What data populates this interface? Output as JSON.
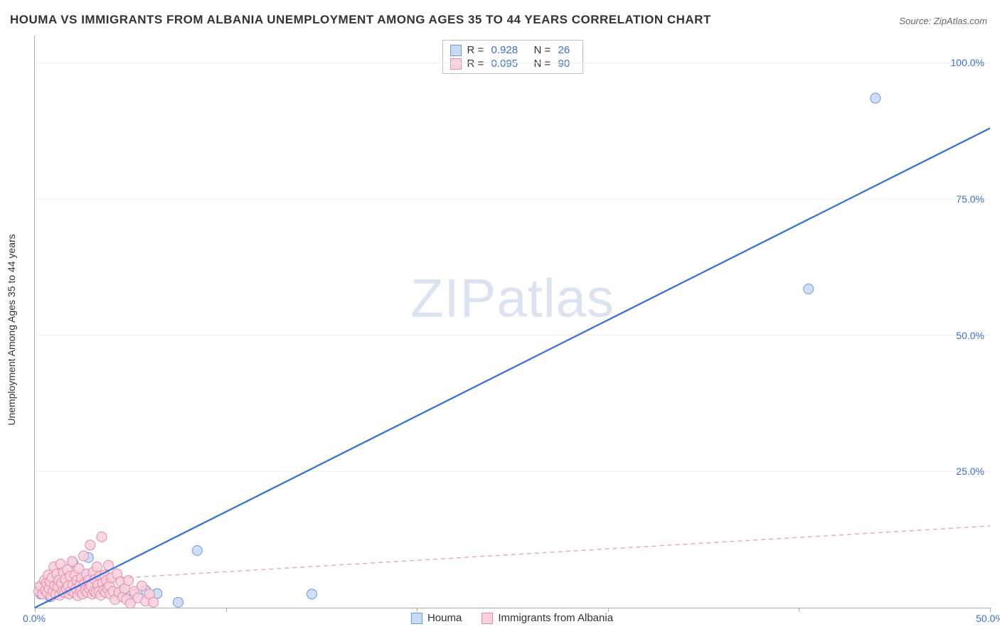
{
  "title": "HOUMA VS IMMIGRANTS FROM ALBANIA UNEMPLOYMENT AMONG AGES 35 TO 44 YEARS CORRELATION CHART",
  "source_label": "Source:",
  "source_value": "ZipAtlas.com",
  "ylabel": "Unemployment Among Ages 35 to 44 years",
  "watermark_a": "ZIP",
  "watermark_b": "atlas",
  "chart": {
    "type": "scatter",
    "xlim": [
      0,
      50
    ],
    "ylim": [
      0,
      105
    ],
    "x_ticks": [
      0,
      10,
      20,
      30,
      40,
      50
    ],
    "x_tick_labels": [
      "0.0%",
      "",
      "",
      "",
      "",
      "50.0%"
    ],
    "y_gridlines": [
      25,
      50,
      75,
      100
    ],
    "y_tick_labels": [
      "25.0%",
      "50.0%",
      "75.0%",
      "100.0%"
    ],
    "background_color": "#ffffff",
    "grid_color": "#eeeeee",
    "axis_color": "#ababab",
    "tick_label_color": "#3b6fd6",
    "series": [
      {
        "name": "Houma",
        "marker_fill": "#c7dbf5",
        "marker_stroke": "#6a9ae0",
        "marker_radius": 7,
        "line_color": "#2e6fe0",
        "line_width": 2.2,
        "line_dash": "none",
        "r_value": "0.928",
        "n_value": "26",
        "trend": {
          "x1": 0,
          "y1": 0,
          "x2": 50,
          "y2": 88
        },
        "points": [
          [
            0.3,
            2.5
          ],
          [
            0.5,
            3.1
          ],
          [
            0.8,
            2.0
          ],
          [
            1.0,
            4.2
          ],
          [
            1.2,
            3.0
          ],
          [
            1.4,
            6.0
          ],
          [
            1.6,
            3.4
          ],
          [
            1.8,
            5.6
          ],
          [
            2.0,
            8.2
          ],
          [
            2.2,
            4.0
          ],
          [
            2.4,
            3.8
          ],
          [
            2.6,
            5.0
          ],
          [
            2.8,
            9.2
          ],
          [
            3.0,
            4.1
          ],
          [
            3.4,
            4.5
          ],
          [
            3.8,
            3.2
          ],
          [
            4.2,
            2.8
          ],
          [
            4.6,
            3.0
          ],
          [
            5.2,
            2.5
          ],
          [
            5.8,
            3.2
          ],
          [
            6.4,
            2.6
          ],
          [
            7.5,
            1.0
          ],
          [
            8.5,
            10.5
          ],
          [
            14.5,
            2.5
          ],
          [
            40.5,
            58.5
          ],
          [
            44.0,
            93.5
          ]
        ]
      },
      {
        "name": "Immigrants from Albania",
        "marker_fill": "#f8d1dd",
        "marker_stroke": "#e48aac",
        "marker_radius": 7,
        "line_color": "#e9a5b9",
        "line_width": 1.4,
        "line_dash": "6 5",
        "r_value": "0.095",
        "n_value": "90",
        "trend": {
          "x1": 0,
          "y1": 4.5,
          "x2": 50,
          "y2": 15.0
        },
        "points": [
          [
            0.2,
            3.0
          ],
          [
            0.3,
            4.0
          ],
          [
            0.4,
            2.5
          ],
          [
            0.5,
            5.0
          ],
          [
            0.55,
            3.2
          ],
          [
            0.6,
            4.5
          ],
          [
            0.65,
            2.8
          ],
          [
            0.7,
            6.0
          ],
          [
            0.75,
            3.5
          ],
          [
            0.8,
            4.8
          ],
          [
            0.85,
            2.1
          ],
          [
            0.9,
            5.5
          ],
          [
            0.95,
            3.0
          ],
          [
            1.0,
            7.5
          ],
          [
            1.05,
            4.1
          ],
          [
            1.1,
            2.5
          ],
          [
            1.15,
            6.2
          ],
          [
            1.2,
            3.8
          ],
          [
            1.25,
            5.0
          ],
          [
            1.3,
            2.3
          ],
          [
            1.35,
            8.0
          ],
          [
            1.4,
            4.5
          ],
          [
            1.45,
            3.0
          ],
          [
            1.5,
            6.5
          ],
          [
            1.55,
            2.8
          ],
          [
            1.6,
            5.2
          ],
          [
            1.65,
            3.5
          ],
          [
            1.7,
            7.0
          ],
          [
            1.75,
            4.0
          ],
          [
            1.8,
            2.5
          ],
          [
            1.85,
            5.8
          ],
          [
            1.9,
            3.2
          ],
          [
            1.95,
            8.5
          ],
          [
            2.0,
            4.2
          ],
          [
            2.05,
            2.8
          ],
          [
            2.1,
            6.0
          ],
          [
            2.15,
            3.5
          ],
          [
            2.2,
            5.0
          ],
          [
            2.25,
            2.2
          ],
          [
            2.3,
            7.2
          ],
          [
            2.35,
            4.0
          ],
          [
            2.4,
            3.0
          ],
          [
            2.45,
            5.5
          ],
          [
            2.5,
            2.5
          ],
          [
            2.55,
            9.5
          ],
          [
            2.6,
            4.5
          ],
          [
            2.65,
            3.2
          ],
          [
            2.7,
            6.2
          ],
          [
            2.75,
            2.8
          ],
          [
            2.8,
            5.0
          ],
          [
            2.85,
            3.5
          ],
          [
            2.9,
            11.5
          ],
          [
            2.95,
            4.0
          ],
          [
            3.0,
            2.5
          ],
          [
            3.05,
            6.5
          ],
          [
            3.1,
            3.0
          ],
          [
            3.15,
            5.2
          ],
          [
            3.2,
            2.8
          ],
          [
            3.25,
            7.5
          ],
          [
            3.3,
            4.2
          ],
          [
            3.35,
            3.0
          ],
          [
            3.4,
            5.8
          ],
          [
            3.45,
            2.3
          ],
          [
            3.5,
            13.0
          ],
          [
            3.55,
            4.5
          ],
          [
            3.6,
            3.2
          ],
          [
            3.65,
            6.0
          ],
          [
            3.7,
            2.8
          ],
          [
            3.75,
            5.0
          ],
          [
            3.8,
            3.5
          ],
          [
            3.85,
            7.8
          ],
          [
            3.9,
            4.0
          ],
          [
            3.95,
            2.5
          ],
          [
            4.0,
            5.5
          ],
          [
            4.1,
            3.0
          ],
          [
            4.2,
            1.5
          ],
          [
            4.3,
            6.2
          ],
          [
            4.4,
            2.8
          ],
          [
            4.5,
            4.8
          ],
          [
            4.6,
            2.0
          ],
          [
            4.7,
            3.5
          ],
          [
            4.8,
            1.5
          ],
          [
            4.9,
            5.0
          ],
          [
            5.0,
            0.8
          ],
          [
            5.2,
            3.0
          ],
          [
            5.4,
            1.8
          ],
          [
            5.6,
            4.0
          ],
          [
            5.8,
            1.2
          ],
          [
            6.0,
            2.5
          ],
          [
            6.2,
            1.0
          ]
        ]
      }
    ]
  },
  "legend": {
    "series1_label": "Houma",
    "series2_label": "Immigrants from Albania"
  },
  "stats_labels": {
    "r": "R  =",
    "n": "N  ="
  }
}
